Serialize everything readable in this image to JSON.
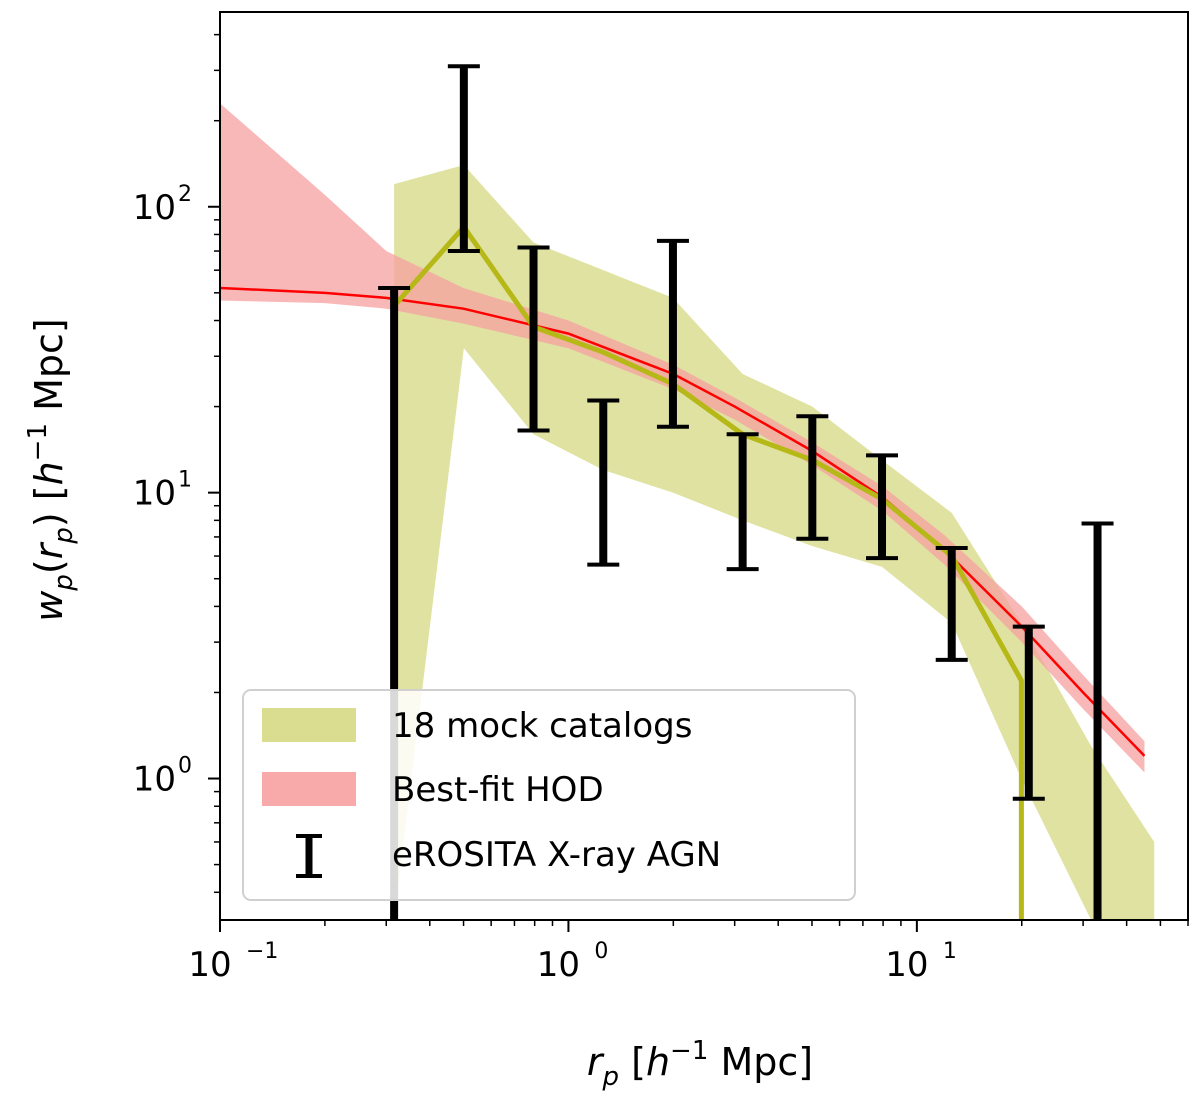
{
  "chart_data": {
    "type": "line",
    "xscale": "log",
    "yscale": "log",
    "xlim": [
      0.1,
      60
    ],
    "ylim": [
      0.32,
      480
    ],
    "xlabel": {
      "pre": "r",
      "sub": "p",
      "mid": " [",
      "h": "h",
      "sup": "−1",
      "post": " Mpc]"
    },
    "ylabel": {
      "pre": "w",
      "sub": "p",
      "open": "(",
      "inner": "r",
      "inner_sub": "p",
      "close": ")",
      "mid": " [",
      "h": "h",
      "sup": "−1",
      "post": " Mpc]"
    },
    "xticks": [
      {
        "value": 0.1,
        "base": "10",
        "exp": "−1"
      },
      {
        "value": 1,
        "base": "10",
        "exp": "0"
      },
      {
        "value": 10,
        "base": "10",
        "exp": "1"
      }
    ],
    "yticks": [
      {
        "value": 1,
        "base": "10",
        "exp": "0"
      },
      {
        "value": 10,
        "base": "10",
        "exp": "1"
      },
      {
        "value": 100,
        "base": "10",
        "exp": "2"
      }
    ],
    "colors": {
      "mock_fill": "#d6d883",
      "mock_line": "#b5b816",
      "hod_fill": "#f7a0a0",
      "hod_line": "#ff0000",
      "agn": "#000000"
    },
    "series": [
      {
        "name": "18 mock catalogs",
        "kind": "band_line",
        "x": [
          0.316,
          0.501,
          0.794,
          1.259,
          1.995,
          3.162,
          5.012,
          7.943,
          12.59,
          19.95,
          31.62,
          48
        ],
        "y": [
          45,
          85,
          38,
          31,
          24,
          16,
          13,
          9.5,
          6.0,
          2.2,
          null,
          null
        ],
        "upper": [
          120,
          140,
          75,
          60,
          48,
          26,
          20,
          13,
          8.5,
          3.5,
          1.3,
          0.6
        ],
        "lower": [
          0.32,
          32,
          16,
          12,
          10,
          8.0,
          6.5,
          5.5,
          3.5,
          1.0,
          0.32,
          0.32
        ],
        "lower_left": 0.32,
        "lower_left_right": 0.32
      },
      {
        "name": "Best-fit HOD",
        "kind": "band_line",
        "x": [
          0.1,
          0.2,
          0.3,
          0.5,
          1.0,
          2.0,
          3.0,
          5.0,
          8.0,
          12.0,
          20.0,
          30.0,
          45.0
        ],
        "y": [
          52,
          50,
          48,
          44,
          36,
          26,
          20,
          14,
          9.6,
          6.3,
          3.4,
          2.0,
          1.2
        ],
        "upper": [
          230,
          110,
          70,
          52,
          40,
          28,
          21.5,
          15,
          10.5,
          7.1,
          4.0,
          2.3,
          1.35
        ],
        "lower": [
          47,
          46,
          44,
          39,
          32,
          23,
          18.0,
          12.5,
          8.6,
          5.6,
          3.0,
          1.75,
          1.05
        ]
      },
      {
        "name": "eROSITA X-ray AGN",
        "kind": "errorbar",
        "points": [
          {
            "x": 0.316,
            "low": 0.32,
            "high": 52
          },
          {
            "x": 0.501,
            "low": 70,
            "high": 310
          },
          {
            "x": 0.794,
            "low": 16.5,
            "high": 72
          },
          {
            "x": 1.259,
            "low": 5.6,
            "high": 21
          },
          {
            "x": 1.995,
            "low": 17,
            "high": 76
          },
          {
            "x": 3.162,
            "low": 5.4,
            "high": 16
          },
          {
            "x": 5.012,
            "low": 6.9,
            "high": 18.5
          },
          {
            "x": 7.943,
            "low": 5.9,
            "high": 13.5
          },
          {
            "x": 12.59,
            "low": 2.6,
            "high": 6.4
          },
          {
            "x": 20.95,
            "low": 0.85,
            "high": 3.4
          },
          {
            "x": 33.0,
            "low": 0.32,
            "high": 7.8
          }
        ]
      }
    ],
    "legend": {
      "position": "lower-left",
      "entries": [
        "18 mock catalogs",
        "Best-fit HOD",
        "eROSITA X-ray AGN"
      ]
    }
  }
}
